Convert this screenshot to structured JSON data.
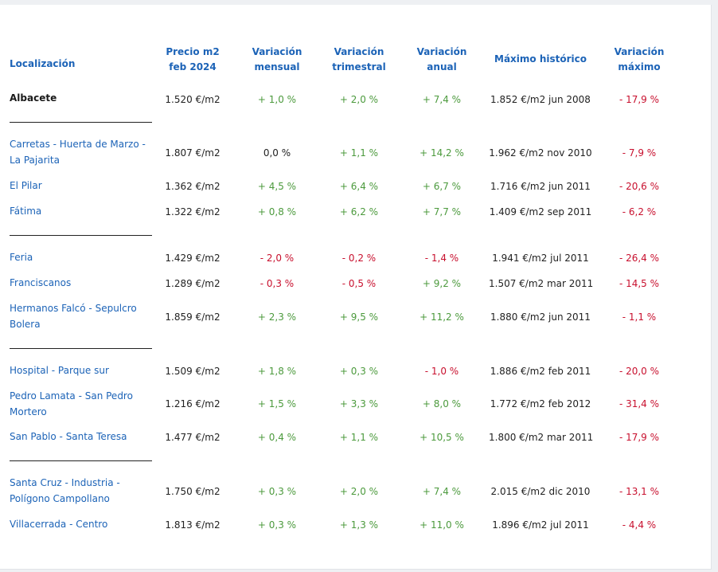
{
  "headers": {
    "location": "Localización",
    "price": "Precio m2 feb 2024",
    "monthly": "Variación mensual",
    "quarterly": "Variación trimestral",
    "annual": "Variación anual",
    "max_hist": "Máximo histórico",
    "var_max": "Variación máximo"
  },
  "rows": [
    {
      "loc": "Albacete",
      "price": "1.520 €/m2",
      "mensual": "+ 1,0 %",
      "trimestral": "+ 2,0 %",
      "anual": "+ 7,4 %",
      "maximo": "1.852 €/m2 jun 2008",
      "var_max": "- 17,9 %"
    },
    {
      "loc": "Carretas - Huerta de Marzo - La Pajarita",
      "price": "1.807 €/m2",
      "mensual": "0,0 %",
      "trimestral": "+ 1,1 %",
      "anual": "+ 14,2 %",
      "maximo": "1.962 €/m2 nov 2010",
      "var_max": "- 7,9 %"
    },
    {
      "loc": "El Pilar",
      "price": "1.362 €/m2",
      "mensual": "+ 4,5 %",
      "trimestral": "+ 6,4 %",
      "anual": "+ 6,7 %",
      "maximo": "1.716 €/m2 jun 2011",
      "var_max": "- 20,6 %"
    },
    {
      "loc": "Fátima",
      "price": "1.322 €/m2",
      "mensual": "+ 0,8 %",
      "trimestral": "+ 6,2 %",
      "anual": "+ 7,7 %",
      "maximo": "1.409 €/m2 sep 2011",
      "var_max": "- 6,2 %"
    },
    {
      "loc": "Feria",
      "price": "1.429 €/m2",
      "mensual": "- 2,0 %",
      "trimestral": "- 0,2 %",
      "anual": "- 1,4 %",
      "maximo": "1.941 €/m2 jul 2011",
      "var_max": "- 26,4 %"
    },
    {
      "loc": "Franciscanos",
      "price": "1.289 €/m2",
      "mensual": "- 0,3 %",
      "trimestral": "- 0,5 %",
      "anual": "+ 9,2 %",
      "maximo": "1.507 €/m2 mar 2011",
      "var_max": "- 14,5 %"
    },
    {
      "loc": "Hermanos Falcó - Sepulcro Bolera",
      "price": "1.859 €/m2",
      "mensual": "+ 2,3 %",
      "trimestral": "+ 9,5 %",
      "anual": "+ 11,2 %",
      "maximo": "1.880 €/m2 jun 2011",
      "var_max": "- 1,1 %"
    },
    {
      "loc": "Hospital - Parque sur",
      "price": "1.509 €/m2",
      "mensual": "+ 1,8 %",
      "trimestral": "+ 0,3 %",
      "anual": "- 1,0 %",
      "maximo": "1.886 €/m2 feb 2011",
      "var_max": "- 20,0 %"
    },
    {
      "loc": "Pedro Lamata - San Pedro Mortero",
      "price": "1.216 €/m2",
      "mensual": "+ 1,5 %",
      "trimestral": "+ 3,3 %",
      "anual": "+ 8,0 %",
      "maximo": "1.772 €/m2 feb 2012",
      "var_max": "- 31,4 %"
    },
    {
      "loc": "San Pablo - Santa Teresa",
      "price": "1.477 €/m2",
      "mensual": "+ 0,4 %",
      "trimestral": "+ 1,1 %",
      "anual": "+ 10,5 %",
      "maximo": "1.800 €/m2 mar 2011",
      "var_max": "- 17,9 %"
    },
    {
      "loc": "Santa Cruz - Industria - Polígono Campollano",
      "price": "1.750 €/m2",
      "mensual": "+ 0,3 %",
      "trimestral": "+ 2,0 %",
      "anual": "+ 7,4 %",
      "maximo": "2.015 €/m2 dic 2010",
      "var_max": "- 13,1 %"
    },
    {
      "loc": "Villacerrada - Centro",
      "price": "1.813 €/m2",
      "mensual": "+ 0,3 %",
      "trimestral": "+ 1,3 %",
      "anual": "+ 11,0 %",
      "maximo": "1.896 €/m2 jul 2011",
      "var_max": "- 4,4 %"
    }
  ]
}
